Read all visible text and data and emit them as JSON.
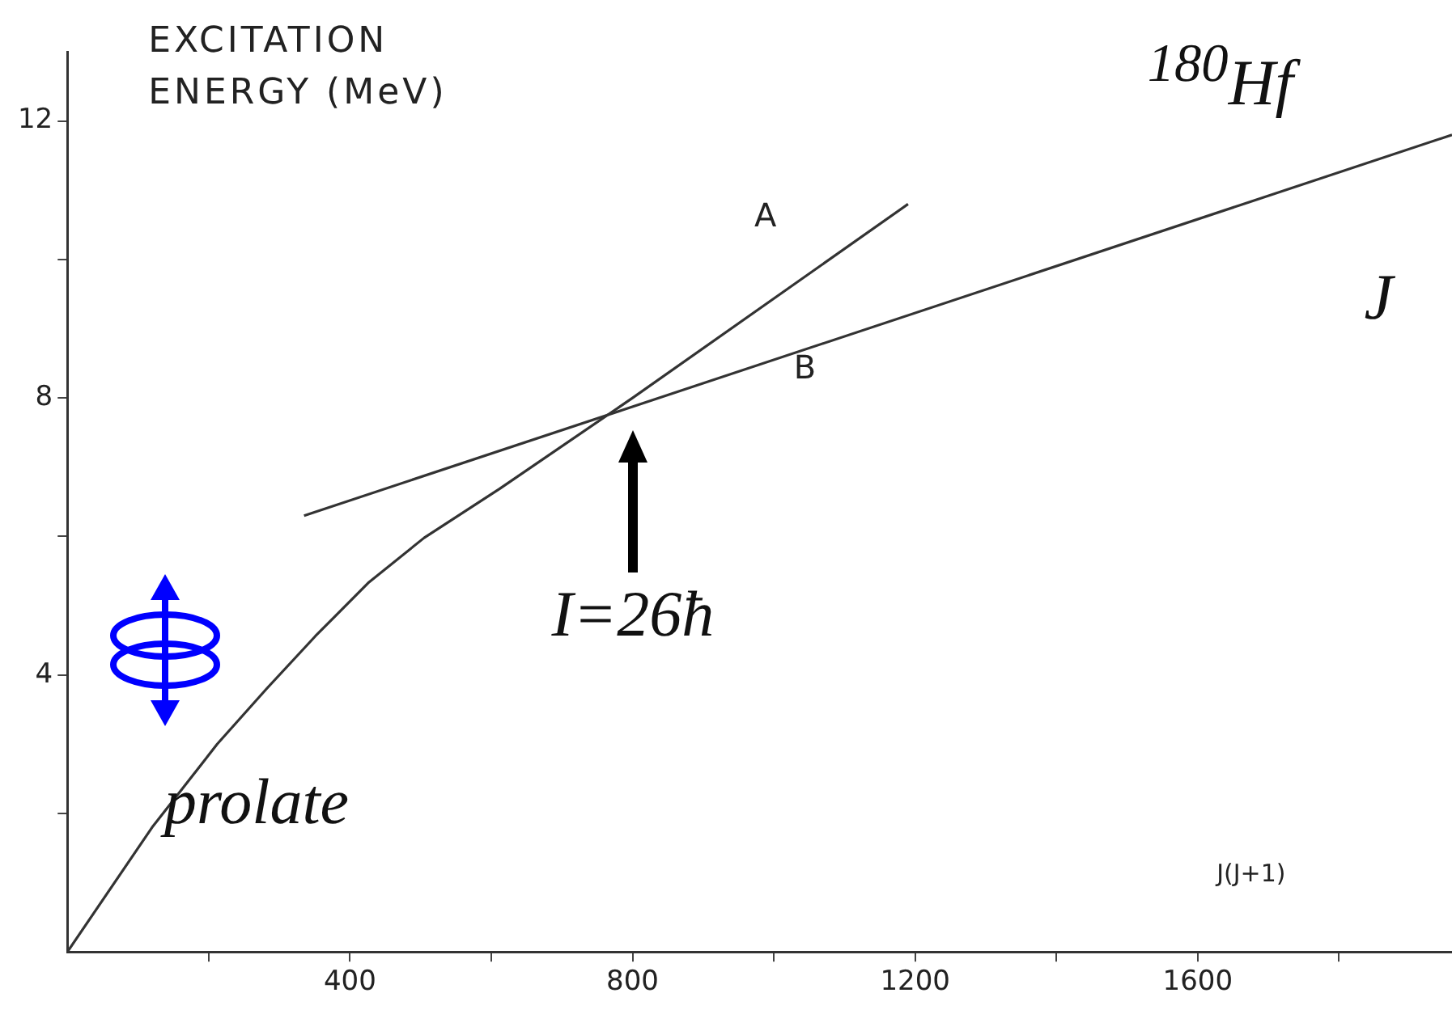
{
  "chart_data": {
    "type": "line",
    "ylabel": "EXCITATION ENERGY (MeV)",
    "xlabel": "J(J+1)",
    "series": [
      {
        "name": "A",
        "color": "#333333",
        "x": [
          0,
          120,
          212,
          282,
          351,
          427,
          505,
          612,
          800,
          1190
        ],
        "values": [
          0,
          1.8,
          3.0,
          3.8,
          4.56,
          5.34,
          5.98,
          6.69,
          8.0,
          10.8
        ]
      },
      {
        "name": "B",
        "color": "#333333",
        "x": [
          335,
          1960
        ],
        "values": [
          6.3,
          11.8
        ]
      }
    ],
    "xlim": [
      0,
      1960
    ],
    "xticks": [
      {
        "value": 200,
        "label": null
      },
      400,
      {
        "value": 600,
        "label": null
      },
      800,
      {
        "value": 1000,
        "label": null
      },
      1200,
      {
        "value": 1400,
        "label": null
      },
      1600,
      {
        "value": 1800,
        "label": null
      }
    ],
    "ylim": [
      0,
      13
    ],
    "yticks": [
      {
        "value": 2,
        "label": null
      },
      4,
      {
        "value": 6,
        "label": null
      },
      8,
      {
        "value": 10,
        "label": null
      },
      12
    ],
    "annotations": [
      "$^{180}$Hf",
      "J",
      "prolate",
      {
        "text": "I=26ħ",
        "x": 800,
        "y": 8
      }
    ],
    "grid": false,
    "legend": false,
    "marker": "none",
    "line_style": "solid"
  }
}
